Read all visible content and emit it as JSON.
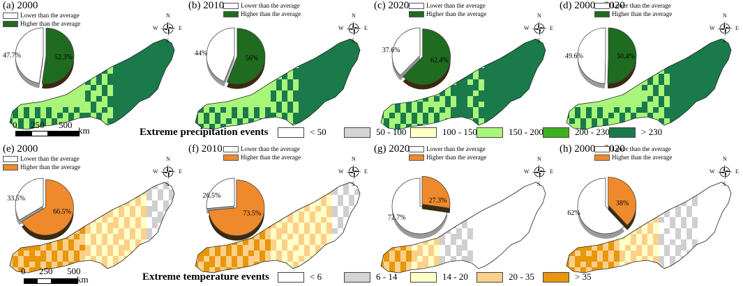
{
  "colors": {
    "white": "#ffffff",
    "green_light": "#a8f57a",
    "green_dark": "#1a7a4a",
    "gray": "#cfcfcf",
    "yellow_light": "#ffffc8",
    "peach": "#fbd08a",
    "orange": "#e8960c",
    "pie_green": "#1f6b1f",
    "pie_orange": "#ef8a2c"
  },
  "legend_labels": {
    "lower": "Lower than the average",
    "higher": "Higher than the average"
  },
  "panels": [
    {
      "title": "(a) 2000",
      "row": "precip",
      "lower_pct": "47.7%",
      "higher_pct": "52.3%",
      "higher": 0.523
    },
    {
      "title": "(b) 2010",
      "row": "precip",
      "lower_pct": "44%",
      "higher_pct": "56%",
      "higher": 0.56
    },
    {
      "title": "(c) 2020",
      "row": "precip",
      "lower_pct": "37.6%",
      "higher_pct": "62.4%",
      "higher": 0.624
    },
    {
      "title": "(d) 2000 - 2020",
      "row": "precip",
      "lower_pct": "49.6%",
      "higher_pct": "50.4%",
      "higher": 0.504
    },
    {
      "title": "(e) 2000",
      "row": "temp",
      "lower_pct": "33.5%",
      "higher_pct": "66.5%",
      "higher": 0.665
    },
    {
      "title": "(f) 2010",
      "row": "temp",
      "lower_pct": "26.5%",
      "higher_pct": "73.5%",
      "higher": 0.735
    },
    {
      "title": "(g) 2020",
      "row": "temp",
      "lower_pct": "72.7%",
      "higher_pct": "27.3%",
      "higher": 0.273
    },
    {
      "title": "(h) 2000 - 2020",
      "row": "temp",
      "lower_pct": "62%",
      "higher_pct": "38%",
      "higher": 0.38
    }
  ],
  "compass": {
    "n": "N",
    "s": "S",
    "e": "E",
    "w": "W"
  },
  "scale": {
    "t0": "0",
    "t1": "250",
    "t2": "500",
    "unit": "km"
  },
  "precip_legend": {
    "title": "Extreme precipitation events",
    "items": [
      "< 50",
      "50 - 100",
      "100 - 150",
      "150 - 200",
      "200 - 230",
      "> 230"
    ],
    "colors": [
      "#ffffff",
      "#d4d4d4",
      "#ffffc8",
      "#a8f57a",
      "#3cb01e",
      "#1a7a4a"
    ]
  },
  "temp_legend": {
    "title": "Extreme temperature events",
    "items": [
      "< 6",
      "6 - 14",
      "14 - 20",
      "20 - 35",
      "> 35"
    ],
    "colors": [
      "#ffffff",
      "#d4d4d4",
      "#ffffc8",
      "#fbd08a",
      "#e8960c"
    ]
  }
}
